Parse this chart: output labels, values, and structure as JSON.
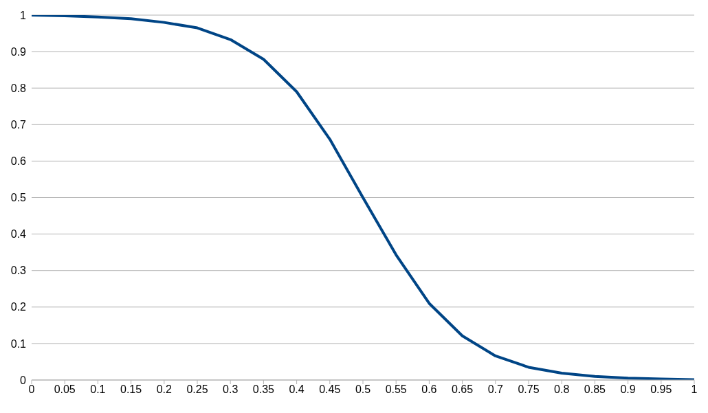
{
  "chart_data": {
    "type": "line",
    "x": [
      0,
      0.05,
      0.1,
      0.15,
      0.2,
      0.25,
      0.3,
      0.35,
      0.4,
      0.45,
      0.5,
      0.55,
      0.6,
      0.65,
      0.7,
      0.75,
      0.8,
      0.85,
      0.9,
      0.95,
      1
    ],
    "series": [
      {
        "color": "#004586",
        "values": [
          1.0,
          0.998,
          0.995,
          0.99,
          0.98,
          0.965,
          0.933,
          0.879,
          0.79,
          0.66,
          0.5,
          0.343,
          0.21,
          0.121,
          0.066,
          0.035,
          0.019,
          0.01,
          0.005,
          0.003,
          0.001
        ]
      }
    ],
    "xlim": [
      0,
      1
    ],
    "xticks": [
      0,
      0.05,
      0.1,
      0.15,
      0.2,
      0.25,
      0.3,
      0.35,
      0.4,
      0.45,
      0.5,
      0.55,
      0.6,
      0.65,
      0.7,
      0.75,
      0.8,
      0.85,
      0.9,
      0.95,
      1
    ],
    "ylim": [
      0,
      1
    ],
    "yticks": [
      0,
      0.1,
      0.2,
      0.3,
      0.4,
      0.5,
      0.6,
      0.7,
      0.8,
      0.9,
      1
    ],
    "grid": "y",
    "legend": false,
    "marker": "none",
    "line_style": "solid"
  }
}
